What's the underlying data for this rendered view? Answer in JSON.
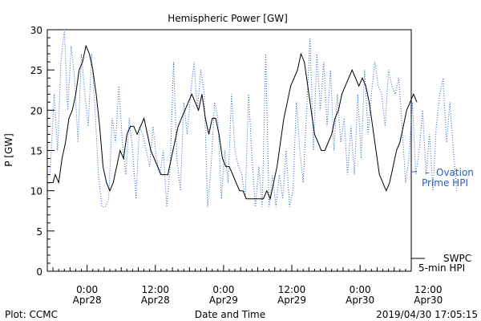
{
  "chart_data": {
    "type": "line",
    "title": "Hemispheric Power [GW]",
    "xlabel": "Date and Time",
    "ylabel": "P [GW]",
    "ylim": [
      0,
      30
    ],
    "yticks": [
      0,
      5,
      10,
      15,
      20,
      25,
      30
    ],
    "x_range_hours": [
      -7,
      57
    ],
    "xticks": [
      {
        "hour": 0,
        "time": "0:00",
        "date": "Apr28"
      },
      {
        "hour": 12,
        "time": "12:00",
        "date": "Apr28"
      },
      {
        "hour": 24,
        "time": "0:00",
        "date": "Apr29"
      },
      {
        "hour": 36,
        "time": "12:00",
        "date": "Apr29"
      },
      {
        "hour": 48,
        "time": "0:00",
        "date": "Apr30"
      },
      {
        "hour": 60,
        "time": "12:00",
        "date": "Apr30"
      }
    ],
    "series": [
      {
        "name": "Ovation Prime HPI",
        "label_lines": [
          "Ovation",
          "Prime HPI"
        ],
        "legend_marker": "–",
        "style": "dotted",
        "color": "#2a5fbf",
        "points": [
          [
            -6.5,
            12
          ],
          [
            -5.8,
            22
          ],
          [
            -5.2,
            15
          ],
          [
            -4.6,
            26
          ],
          [
            -4,
            30
          ],
          [
            -3.4,
            20
          ],
          [
            -2.8,
            28
          ],
          [
            -2.2,
            24
          ],
          [
            -1.6,
            16
          ],
          [
            -1,
            27
          ],
          [
            -0.4,
            22
          ],
          [
            0.2,
            18
          ],
          [
            0.8,
            27
          ],
          [
            1.4,
            20
          ],
          [
            2,
            12
          ],
          [
            2.6,
            8
          ],
          [
            3.2,
            8
          ],
          [
            3.8,
            9
          ],
          [
            4.4,
            19
          ],
          [
            5,
            16
          ],
          [
            5.6,
            23
          ],
          [
            6.2,
            16
          ],
          [
            6.8,
            12
          ],
          [
            7.4,
            19
          ],
          [
            8,
            15
          ],
          [
            8.6,
            9
          ],
          [
            9.2,
            18
          ],
          [
            9.8,
            17
          ],
          [
            10.4,
            15
          ],
          [
            11,
            13
          ],
          [
            11.6,
            18
          ],
          [
            12.2,
            14
          ],
          [
            12.8,
            12
          ],
          [
            13.4,
            15
          ],
          [
            14,
            8
          ],
          [
            14.6,
            13
          ],
          [
            15.2,
            26
          ],
          [
            15.8,
            14
          ],
          [
            16.4,
            10
          ],
          [
            17,
            21
          ],
          [
            17.6,
            17
          ],
          [
            18.2,
            22
          ],
          [
            18.8,
            26
          ],
          [
            19.4,
            20
          ],
          [
            20,
            25
          ],
          [
            20.6,
            22
          ],
          [
            21.2,
            8
          ],
          [
            21.8,
            13
          ],
          [
            22.4,
            21
          ],
          [
            23,
            19
          ],
          [
            23.6,
            9
          ],
          [
            24.2,
            15
          ],
          [
            24.8,
            11
          ],
          [
            25.4,
            22
          ],
          [
            26,
            15
          ],
          [
            26.6,
            13
          ],
          [
            27.2,
            12
          ],
          [
            27.8,
            9
          ],
          [
            28.4,
            22
          ],
          [
            29,
            14
          ],
          [
            29.6,
            8
          ],
          [
            30.2,
            13
          ],
          [
            30.8,
            8
          ],
          [
            31.4,
            27
          ],
          [
            32,
            8
          ],
          [
            32.6,
            12
          ],
          [
            33.2,
            8
          ],
          [
            33.8,
            12
          ],
          [
            34.4,
            9
          ],
          [
            35,
            15
          ],
          [
            35.6,
            8
          ],
          [
            36.2,
            10
          ],
          [
            36.8,
            21
          ],
          [
            37.4,
            15
          ],
          [
            38,
            11
          ],
          [
            38.6,
            20
          ],
          [
            39.2,
            29
          ],
          [
            39.8,
            15
          ],
          [
            40.4,
            27
          ],
          [
            41,
            20
          ],
          [
            41.6,
            26
          ],
          [
            42.2,
            18
          ],
          [
            42.8,
            25
          ],
          [
            43.4,
            15
          ],
          [
            44,
            22
          ],
          [
            44.6,
            16
          ],
          [
            45.2,
            19
          ],
          [
            45.8,
            12
          ],
          [
            46.4,
            18
          ],
          [
            47,
            12
          ],
          [
            47.6,
            22
          ],
          [
            48.2,
            14
          ],
          [
            48.8,
            25
          ],
          [
            49.4,
            17
          ],
          [
            50,
            22
          ],
          [
            50.6,
            26
          ],
          [
            51.2,
            23
          ],
          [
            51.8,
            22
          ],
          [
            52.4,
            18
          ],
          [
            53,
            25
          ],
          [
            53.6,
            23
          ],
          [
            54.2,
            22
          ],
          [
            54.8,
            24
          ],
          [
            55.4,
            18
          ],
          [
            56,
            11
          ],
          [
            56.6,
            14
          ],
          [
            57.2,
            21
          ],
          [
            57.8,
            12
          ],
          [
            58.4,
            15
          ],
          [
            59,
            20
          ],
          [
            59.6,
            12
          ],
          [
            60.2,
            17
          ],
          [
            60.8,
            10
          ],
          [
            61.4,
            18
          ],
          [
            62,
            22
          ],
          [
            62.6,
            24
          ],
          [
            63.2,
            16
          ],
          [
            63.8,
            21
          ],
          [
            64.4,
            15
          ],
          [
            65,
            10
          ]
        ]
      },
      {
        "name": "SWPC 5-min HPI",
        "label_lines": [
          "SWPC",
          "5-min HPI"
        ],
        "style": "solid",
        "color": "#000000",
        "points": [
          [
            -6.8,
            11
          ],
          [
            -6,
            11
          ],
          [
            -5.6,
            12
          ],
          [
            -5,
            11
          ],
          [
            -4.4,
            14
          ],
          [
            -3.8,
            16
          ],
          [
            -3.2,
            19
          ],
          [
            -2.6,
            20
          ],
          [
            -2,
            22
          ],
          [
            -1.4,
            25
          ],
          [
            -0.8,
            26
          ],
          [
            -0.2,
            28
          ],
          [
            0.4,
            27
          ],
          [
            1,
            25
          ],
          [
            1.6,
            22
          ],
          [
            2.2,
            18
          ],
          [
            2.8,
            13
          ],
          [
            3.4,
            11
          ],
          [
            4,
            10
          ],
          [
            4.6,
            11
          ],
          [
            5.2,
            13
          ],
          [
            5.8,
            15
          ],
          [
            6.4,
            14
          ],
          [
            7,
            17
          ],
          [
            7.6,
            18
          ],
          [
            8.2,
            18
          ],
          [
            8.8,
            17
          ],
          [
            9.4,
            18
          ],
          [
            10,
            19
          ],
          [
            10.6,
            17
          ],
          [
            11.2,
            15
          ],
          [
            11.8,
            14
          ],
          [
            12.4,
            13
          ],
          [
            13,
            12
          ],
          [
            13.6,
            12
          ],
          [
            14.2,
            12
          ],
          [
            14.8,
            14
          ],
          [
            15.4,
            16
          ],
          [
            16,
            18
          ],
          [
            16.6,
            19
          ],
          [
            17.2,
            20
          ],
          [
            17.8,
            21
          ],
          [
            18.4,
            22
          ],
          [
            19,
            21
          ],
          [
            19.6,
            20
          ],
          [
            20.2,
            22
          ],
          [
            20.8,
            19
          ],
          [
            21.4,
            17
          ],
          [
            22,
            19
          ],
          [
            22.6,
            19
          ],
          [
            23.2,
            17
          ],
          [
            23.8,
            14
          ],
          [
            24.4,
            13
          ],
          [
            25,
            13
          ],
          [
            25.6,
            12
          ],
          [
            26.2,
            11
          ],
          [
            26.8,
            10
          ],
          [
            27.4,
            10
          ],
          [
            28,
            9
          ],
          [
            28.6,
            9
          ],
          [
            29.2,
            9
          ],
          [
            29.8,
            9
          ],
          [
            30.4,
            9
          ],
          [
            31,
            9
          ],
          [
            31.6,
            10
          ],
          [
            32.2,
            9
          ],
          [
            32.8,
            11
          ],
          [
            33.4,
            13
          ],
          [
            34,
            16
          ],
          [
            34.6,
            19
          ],
          [
            35.2,
            21
          ],
          [
            35.8,
            23
          ],
          [
            36.4,
            24
          ],
          [
            37,
            25
          ],
          [
            37.6,
            27
          ],
          [
            38.2,
            26
          ],
          [
            38.8,
            23
          ],
          [
            39.4,
            20
          ],
          [
            40,
            17
          ],
          [
            40.6,
            16
          ],
          [
            41.2,
            15
          ],
          [
            41.8,
            15
          ],
          [
            42.4,
            16
          ],
          [
            43,
            17
          ],
          [
            43.6,
            19
          ],
          [
            44.2,
            20
          ],
          [
            44.8,
            22
          ],
          [
            45.4,
            23
          ],
          [
            46,
            24
          ],
          [
            46.6,
            25
          ],
          [
            47.2,
            24
          ],
          [
            47.8,
            23
          ],
          [
            48.4,
            24
          ],
          [
            49,
            23
          ],
          [
            49.6,
            21
          ],
          [
            50.2,
            18
          ],
          [
            50.8,
            15
          ],
          [
            51.4,
            12
          ],
          [
            52,
            11
          ],
          [
            52.6,
            10
          ],
          [
            53.2,
            11
          ],
          [
            53.8,
            13
          ],
          [
            54.4,
            15
          ],
          [
            55,
            16
          ],
          [
            55.6,
            18
          ],
          [
            56.2,
            20
          ],
          [
            56.8,
            21
          ],
          [
            57.4,
            22
          ],
          [
            58,
            21
          ]
        ]
      }
    ],
    "footer_left": "Plot: CCMC",
    "footer_right": "2019/04/30 17:05:15"
  }
}
